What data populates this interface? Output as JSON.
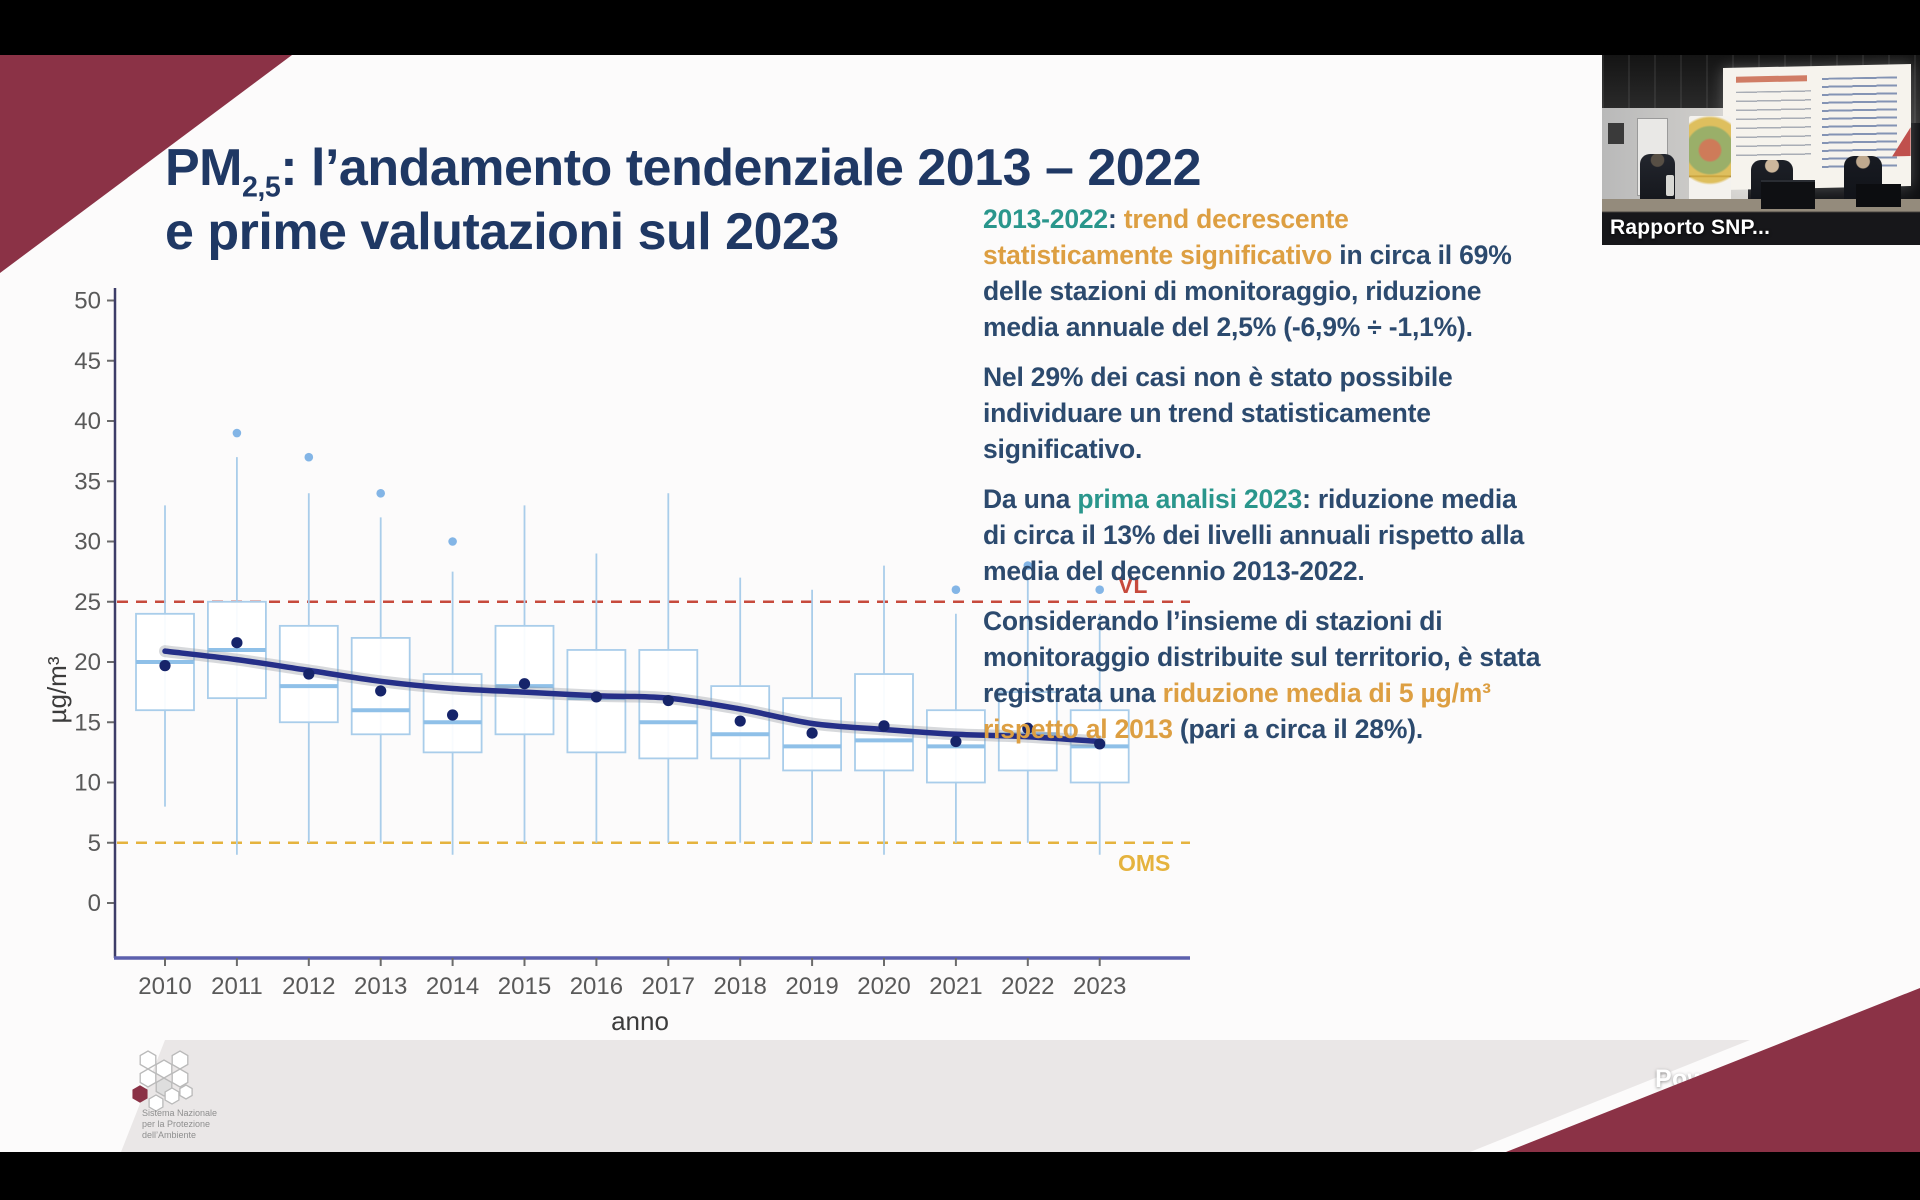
{
  "slide": {
    "title": {
      "pm": "PM",
      "pm_sub": "2,5",
      "line1_rest": ": l’andamento tendenziale 2013 – 2022",
      "line2": "e prime valutazioni sul 2023"
    },
    "right_panel": {
      "paragraphs": [
        {
          "segments": [
            {
              "color": "teal",
              "text": "2013-2022"
            },
            {
              "color": "blue",
              "text": ": "
            },
            {
              "color": "orange",
              "text": "trend decrescente statisticamente significativo "
            },
            {
              "color": "blue",
              "text": "in circa il 69% delle stazioni di monitoraggio, riduzione media annuale del 2,5% (-6,9% ÷ -1,1%)."
            }
          ]
        },
        {
          "segments": [
            {
              "color": "blue",
              "text": "Nel 29% dei casi non è stato possibile individuare un trend statisticamente significativo."
            }
          ]
        },
        {
          "segments": [
            {
              "color": "blue",
              "text": "Da una "
            },
            {
              "color": "teal",
              "text": "prima analisi 2023"
            },
            {
              "color": "blue",
              "text": ": riduzione media di circa il 13% dei livelli annuali rispetto alla media del decennio 2013-2022."
            }
          ]
        },
        {
          "segments": [
            {
              "color": "blue",
              "text": "Considerando l’insieme di stazioni di monitoraggio distribuite sul territorio, è stata registrata una "
            },
            {
              "color": "orange",
              "text": "riduzione media di 5 µg/m³ rispetto al 2013 "
            },
            {
              "color": "blue",
              "text": "(pari a circa il 28%)."
            }
          ]
        }
      ]
    },
    "logo": {
      "lines": [
        "Sistema Nazionale",
        "per la Protezione",
        "dell’Ambiente"
      ]
    }
  },
  "video_thumbnail": {
    "label": "Rapporto SNP..."
  },
  "watermark": "Powered by Zoom",
  "colors": {
    "maroon": "#8b3246",
    "navy_title": "#1f3864",
    "navy_text": "#2c4a6e",
    "teal": "#2a968c",
    "orange": "#dd9f42",
    "box_blue": "#a9cdea",
    "median_blue": "#8fc0e8",
    "outlier_blue": "#83b5e6",
    "mean_navy": "#16246a",
    "trend_navy": "#252f88",
    "vl_red": "#c74a3c",
    "oms_yellow": "#e5b33e"
  },
  "chart_data": {
    "type": "boxplot",
    "xlabel": "anno",
    "ylabel": "µg/m³",
    "ylim": [
      0,
      52
    ],
    "y_ticks": [
      0,
      5,
      10,
      15,
      20,
      25,
      30,
      35,
      40,
      45,
      50
    ],
    "grid": false,
    "thresholds": [
      {
        "label": "VL",
        "value": 25,
        "style": "dashed"
      },
      {
        "label": "OMS",
        "value": 5,
        "style": "dashed"
      }
    ],
    "series": [
      {
        "year": "2010",
        "whisker_low": 8,
        "q1": 16,
        "median": 20,
        "q3": 24,
        "whisker_high": 33,
        "mean": 19.7,
        "trend": 20.9,
        "outliers": []
      },
      {
        "year": "2011",
        "whisker_low": 4,
        "q1": 17,
        "median": 21,
        "q3": 25,
        "whisker_high": 37,
        "mean": 21.6,
        "trend": 20.2,
        "outliers": [
          39
        ]
      },
      {
        "year": "2012",
        "whisker_low": 5,
        "q1": 15,
        "median": 18,
        "q3": 23,
        "whisker_high": 34,
        "mean": 19.0,
        "trend": 19.3,
        "outliers": [
          37
        ]
      },
      {
        "year": "2013",
        "whisker_low": 5,
        "q1": 14,
        "median": 16,
        "q3": 22,
        "whisker_high": 32,
        "mean": 17.6,
        "trend": 18.4,
        "outliers": [
          34
        ]
      },
      {
        "year": "2014",
        "whisker_low": 4,
        "q1": 12.5,
        "median": 15,
        "q3": 19,
        "whisker_high": 27.5,
        "mean": 15.6,
        "trend": 17.8,
        "outliers": [
          30
        ]
      },
      {
        "year": "2015",
        "whisker_low": 5,
        "q1": 14,
        "median": 18,
        "q3": 23,
        "whisker_high": 33,
        "mean": 18.2,
        "trend": 17.5,
        "outliers": []
      },
      {
        "year": "2016",
        "whisker_low": 5,
        "q1": 12.5,
        "median": 17,
        "q3": 21,
        "whisker_high": 29,
        "mean": 17.1,
        "trend": 17.2,
        "outliers": []
      },
      {
        "year": "2017",
        "whisker_low": 5,
        "q1": 12,
        "median": 15,
        "q3": 21,
        "whisker_high": 34,
        "mean": 16.8,
        "trend": 17.0,
        "outliers": []
      },
      {
        "year": "2018",
        "whisker_low": 5,
        "q1": 12,
        "median": 14,
        "q3": 18,
        "whisker_high": 27,
        "mean": 15.1,
        "trend": 16.1,
        "outliers": []
      },
      {
        "year": "2019",
        "whisker_low": 5,
        "q1": 11,
        "median": 13,
        "q3": 17,
        "whisker_high": 26,
        "mean": 14.1,
        "trend": 14.9,
        "outliers": []
      },
      {
        "year": "2020",
        "whisker_low": 4,
        "q1": 11,
        "median": 13.5,
        "q3": 19,
        "whisker_high": 28,
        "mean": 14.7,
        "trend": 14.4,
        "outliers": []
      },
      {
        "year": "2021",
        "whisker_low": 5,
        "q1": 10,
        "median": 13,
        "q3": 16,
        "whisker_high": 24,
        "mean": 13.4,
        "trend": 14.0,
        "outliers": [
          26
        ]
      },
      {
        "year": "2022",
        "whisker_low": 5,
        "q1": 11,
        "median": 14,
        "q3": 17.5,
        "whisker_high": 27,
        "mean": 14.5,
        "trend": 13.8,
        "outliers": [
          28
        ]
      },
      {
        "year": "2023",
        "whisker_low": 4,
        "q1": 10,
        "median": 13,
        "q3": 16,
        "whisker_high": 24,
        "mean": 13.2,
        "trend": 13.4,
        "outliers": [
          26
        ]
      }
    ]
  }
}
